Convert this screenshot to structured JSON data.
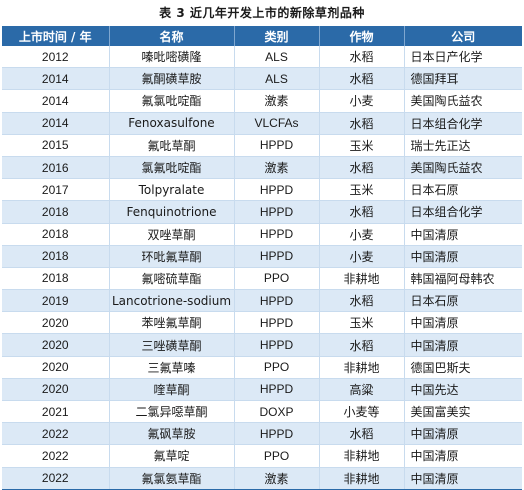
{
  "caption": "表 3 近几年开发上市的新除草剂品种",
  "headers": [
    "上市时间 / 年",
    "名称",
    "类别",
    "作物",
    "公司"
  ],
  "rows": [
    [
      "2012",
      "嗪吡嘧磺隆",
      "ALS",
      "水稻",
      "日本日产化学"
    ],
    [
      "2014",
      "氟酮磺草胺",
      "ALS",
      "水稻",
      "德国拜耳"
    ],
    [
      "2014",
      "氟氯吡啶酯",
      "激素",
      "小麦",
      "美国陶氏益农"
    ],
    [
      "2014",
      "Fenoxasulfone",
      "VLCFAs",
      "水稻",
      "日本组合化学"
    ],
    [
      "2015",
      "氟吡草酮",
      "HPPD",
      "玉米",
      "瑞士先正达"
    ],
    [
      "2016",
      "氯氟吡啶酯",
      "激素",
      "水稻",
      "美国陶氏益农"
    ],
    [
      "2017",
      "Tolpyralate",
      "HPPD",
      "玉米",
      "日本石原"
    ],
    [
      "2018",
      "Fenquinotrione",
      "HPPD",
      "水稻",
      "日本组合化学"
    ],
    [
      "2018",
      "双唑草酮",
      "HPPD",
      "小麦",
      "中国清原"
    ],
    [
      "2018",
      "环吡氟草酮",
      "HPPD",
      "小麦",
      "中国清原"
    ],
    [
      "2018",
      "氟嘧硫草酯",
      "PPO",
      "非耕地",
      "韩国福阿母韩农"
    ],
    [
      "2019",
      "Lancotrione-sodium",
      "HPPD",
      "水稻",
      "日本石原"
    ],
    [
      "2020",
      "苯唑氟草酮",
      "HPPD",
      "玉米",
      "中国清原"
    ],
    [
      "2020",
      "三唑磺草酮",
      "HPPD",
      "水稻",
      "中国清原"
    ],
    [
      "2020",
      "三氟草嗪",
      "PPO",
      "非耕地",
      "德国巴斯夫"
    ],
    [
      "2020",
      "喹草酮",
      "HPPD",
      "高粱",
      "中国先达"
    ],
    [
      "2021",
      "二氯异噁草酮",
      "DOXP",
      "小麦等",
      "美国富美实"
    ],
    [
      "2022",
      "氟砜草胺",
      "HPPD",
      "水稻",
      "中国清原"
    ],
    [
      "2022",
      "氟草啶",
      "PPO",
      "非耕地",
      "中国清原"
    ],
    [
      "2022",
      "氟氯氨草酯",
      "激素",
      "非耕地",
      "中国清原"
    ]
  ]
}
